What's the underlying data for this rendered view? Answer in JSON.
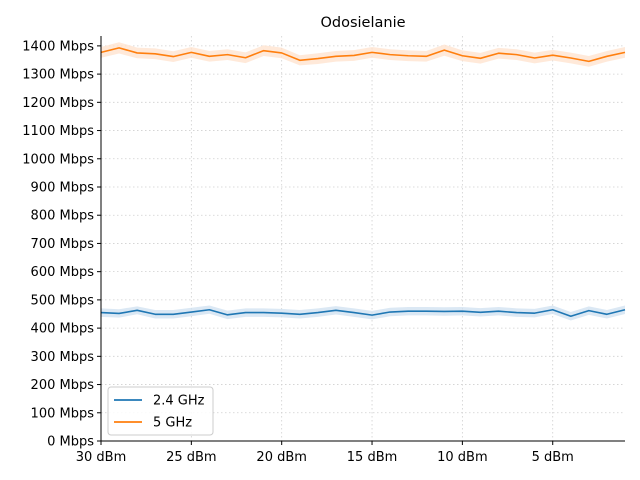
{
  "chart_data": {
    "type": "line",
    "title": "Odosielanie",
    "xlabel": "",
    "ylabel": "",
    "x_ticks": [
      {
        "value": 30,
        "label": "30 dBm"
      },
      {
        "value": 25,
        "label": "25 dBm"
      },
      {
        "value": 20,
        "label": "20 dBm"
      },
      {
        "value": 15,
        "label": "15 dBm"
      },
      {
        "value": 10,
        "label": "10 dBm"
      },
      {
        "value": 5,
        "label": "5 dBm"
      }
    ],
    "y_ticks": [
      {
        "value": 0,
        "label": "0 Mbps"
      },
      {
        "value": 100,
        "label": "100 Mbps"
      },
      {
        "value": 200,
        "label": "200 Mbps"
      },
      {
        "value": 300,
        "label": "300 Mbps"
      },
      {
        "value": 400,
        "label": "400 Mbps"
      },
      {
        "value": 500,
        "label": "500 Mbps"
      },
      {
        "value": 600,
        "label": "600 Mbps"
      },
      {
        "value": 700,
        "label": "700 Mbps"
      },
      {
        "value": 800,
        "label": "800 Mbps"
      },
      {
        "value": 900,
        "label": "900 Mbps"
      },
      {
        "value": 1000,
        "label": "1000 Mbps"
      },
      {
        "value": 1100,
        "label": "1100 Mbps"
      },
      {
        "value": 1200,
        "label": "1200 Mbps"
      },
      {
        "value": 1300,
        "label": "1300 Mbps"
      },
      {
        "value": 1400,
        "label": "1400 Mbps"
      }
    ],
    "xlim": [
      30,
      1
    ],
    "ylim": [
      0,
      1435
    ],
    "grid": true,
    "legend_position": "lower-left",
    "x": [
      30,
      29,
      28,
      27,
      26,
      25,
      24,
      23,
      22,
      21,
      20,
      19,
      18,
      17,
      16,
      15,
      14,
      13,
      12,
      11,
      10,
      9,
      8,
      7,
      6,
      5,
      4,
      3,
      2,
      1
    ],
    "series": [
      {
        "name": "2.4 GHz",
        "color": "#1f77b4",
        "band_color": "#cfe0f0",
        "values": [
          455,
          452,
          463,
          449,
          449,
          457,
          465,
          447,
          455,
          455,
          453,
          449,
          455,
          463,
          455,
          446,
          457,
          460,
          460,
          459,
          460,
          456,
          460,
          455,
          453,
          465,
          442,
          462,
          449,
          465
        ],
        "lower": [
          440,
          437,
          449,
          434,
          434,
          442,
          451,
          432,
          440,
          440,
          438,
          434,
          440,
          448,
          440,
          431,
          442,
          445,
          445,
          444,
          445,
          441,
          445,
          440,
          438,
          450,
          427,
          447,
          434,
          450
        ],
        "upper": [
          470,
          467,
          477,
          464,
          464,
          472,
          480,
          462,
          470,
          470,
          468,
          464,
          470,
          478,
          470,
          461,
          472,
          475,
          475,
          474,
          475,
          471,
          475,
          470,
          468,
          480,
          457,
          477,
          464,
          480
        ]
      },
      {
        "name": "5 GHz",
        "color": "#ff7f0e",
        "band_color": "#ffe2cc",
        "values": [
          1377,
          1393,
          1375,
          1372,
          1362,
          1377,
          1363,
          1369,
          1358,
          1383,
          1375,
          1349,
          1355,
          1363,
          1366,
          1377,
          1369,
          1365,
          1363,
          1385,
          1365,
          1356,
          1374,
          1369,
          1357,
          1367,
          1357,
          1345,
          1363,
          1377
        ],
        "lower": [
          1358,
          1373,
          1356,
          1353,
          1343,
          1358,
          1344,
          1350,
          1339,
          1364,
          1356,
          1331,
          1336,
          1344,
          1347,
          1358,
          1350,
          1346,
          1344,
          1365,
          1346,
          1337,
          1355,
          1350,
          1338,
          1348,
          1338,
          1326,
          1344,
          1358
        ],
        "upper": [
          1396,
          1413,
          1394,
          1391,
          1381,
          1396,
          1382,
          1388,
          1377,
          1402,
          1394,
          1367,
          1374,
          1382,
          1385,
          1396,
          1388,
          1384,
          1382,
          1405,
          1384,
          1375,
          1393,
          1388,
          1376,
          1386,
          1376,
          1364,
          1382,
          1396
        ]
      }
    ]
  }
}
